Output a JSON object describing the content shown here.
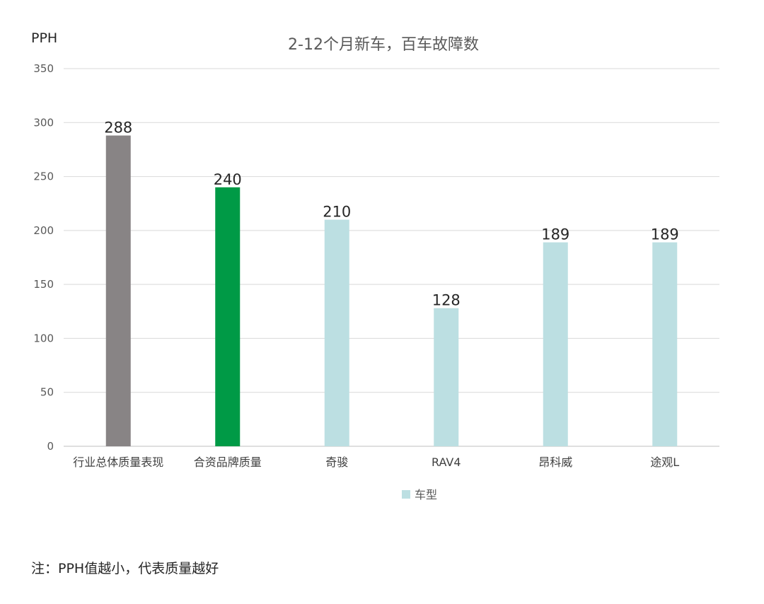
{
  "chart_data": {
    "type": "bar",
    "title": "2-12个月新车，百车故障数",
    "ylabel": "PPH",
    "xlabel": "",
    "ylim": [
      0,
      350
    ],
    "yticks": [
      0,
      50,
      100,
      150,
      200,
      250,
      300,
      350
    ],
    "grid": true,
    "legend_position": "bottom",
    "categories": [
      "行业总体质量表现",
      "合资品牌质量",
      "奇骏",
      "RAV4",
      "昂科威",
      "途观L"
    ],
    "series": [
      {
        "name": "车型",
        "values": [
          288,
          240,
          210,
          128,
          189,
          189
        ],
        "colors": [
          "#888485",
          "#009a46",
          "#bcdfe2",
          "#bcdfe2",
          "#bcdfe2",
          "#bcdfe2"
        ],
        "legend_color": "#bcdfe2"
      }
    ],
    "note": "注：PPH值越小，代表质量越好"
  }
}
